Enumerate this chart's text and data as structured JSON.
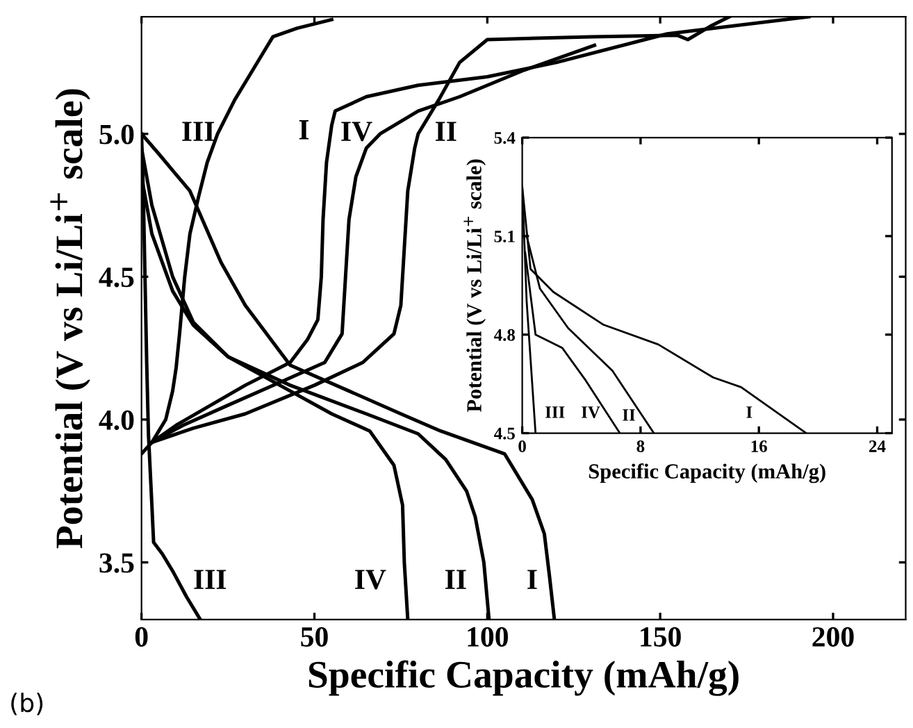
{
  "chart_data": [
    {
      "type": "line",
      "xlabel": "Specific Capacity (mAh/g)",
      "ylabel": "Potential (V vs Li/Li$^{+}$ scale)",
      "xlim": [
        0,
        221
      ],
      "ylim": [
        3.3,
        5.41
      ],
      "xticks": [
        0,
        50,
        100,
        150,
        200
      ],
      "yticks": [
        3.5,
        {
          "value": 4,
          "label": "4.0"
        },
        4.5,
        {
          "value": 5,
          "label": "5.0"
        }
      ],
      "grid": false,
      "series": [
        {
          "name": "III",
          "color": "#000000",
          "x": [
            0,
            3,
            7,
            9,
            10,
            11,
            12.5,
            14,
            16.5,
            19,
            22,
            27,
            31,
            35,
            38,
            45,
            55
          ],
          "values": [
            3.88,
            3.92,
            4.0,
            4.1,
            4.18,
            4.3,
            4.5,
            4.65,
            4.78,
            4.9,
            5.0,
            5.12,
            5.2,
            5.28,
            5.34,
            5.37,
            5.4
          ]
        },
        {
          "name": "III",
          "color": "#000000",
          "x": [
            0,
            0.5,
            1,
            1.5,
            2,
            3,
            3.5,
            6,
            9,
            13,
            17
          ],
          "values": [
            5.0,
            4.8,
            4.5,
            4.2,
            3.95,
            3.7,
            3.57,
            3.53,
            3.47,
            3.38,
            3.3
          ]
        },
        {
          "name": "I",
          "color": "#000000",
          "x": [
            3,
            10,
            20,
            30,
            43,
            48,
            51,
            52,
            52.5,
            53.5,
            55,
            56,
            65,
            80,
            100,
            120,
            152,
            193
          ],
          "values": [
            3.92,
            3.98,
            4.05,
            4.12,
            4.2,
            4.28,
            4.35,
            4.5,
            4.7,
            4.9,
            5.03,
            5.08,
            5.13,
            5.17,
            5.2,
            5.25,
            5.35,
            5.41
          ]
        },
        {
          "name": "IV",
          "color": "#000000",
          "x": [
            3,
            12,
            25,
            40,
            53,
            58,
            59,
            60,
            62,
            65,
            69,
            80,
            92,
            110,
            131
          ],
          "values": [
            3.92,
            3.98,
            4.05,
            4.13,
            4.2,
            4.3,
            4.5,
            4.7,
            4.85,
            4.95,
            5.0,
            5.08,
            5.13,
            5.22,
            5.31
          ]
        },
        {
          "name": "II",
          "color": "#000000",
          "x": [
            3,
            15,
            30,
            50,
            64,
            73,
            75,
            76,
            77,
            79,
            80,
            86,
            92,
            100,
            130,
            155,
            158,
            165,
            170
          ],
          "values": [
            3.92,
            3.97,
            4.02,
            4.12,
            4.2,
            4.3,
            4.4,
            4.6,
            4.8,
            4.95,
            5.0,
            5.12,
            5.25,
            5.33,
            5.34,
            5.345,
            5.33,
            5.38,
            5.41
          ]
        },
        {
          "name": "I",
          "color": "#000000",
          "x": [
            0,
            5,
            14,
            23,
            30,
            43,
            60,
            75,
            86.5,
            105,
            113,
            116.5,
            118,
            119.4
          ],
          "values": [
            5.0,
            4.93,
            4.8,
            4.55,
            4.4,
            4.19,
            4.1,
            4.02,
            3.96,
            3.88,
            3.72,
            3.6,
            3.45,
            3.3
          ]
        },
        {
          "name": "II",
          "color": "#000000",
          "x": [
            0,
            3,
            9,
            15,
            25,
            43,
            65,
            80,
            88,
            94,
            96.5,
            99,
            100.5
          ],
          "values": [
            4.95,
            4.75,
            4.5,
            4.34,
            4.22,
            4.12,
            4.02,
            3.95,
            3.86,
            3.75,
            3.66,
            3.5,
            3.3
          ]
        },
        {
          "name": "IV",
          "color": "#000000",
          "x": [
            0,
            3,
            9,
            15,
            25,
            40,
            55,
            66,
            73,
            75.5,
            76,
            77
          ],
          "values": [
            4.85,
            4.65,
            4.45,
            4.33,
            4.22,
            4.12,
            4.02,
            3.96,
            3.84,
            3.7,
            3.5,
            3.3
          ]
        }
      ],
      "annotations": [
        "(b)"
      ]
    },
    {
      "type": "line",
      "xlabel": "Specific Capacity (mAh/g)",
      "ylabel": "Potential (V vs Li/Li$^{+}$ scale)",
      "xlim": [
        0,
        25
      ],
      "ylim": [
        4.5,
        5.4
      ],
      "xticks": [
        0,
        8,
        16,
        24
      ],
      "yticks": [
        4.5,
        4.8,
        5.1,
        5.4
      ],
      "grid": false,
      "series": [
        {
          "name": "I",
          "color": "#000000",
          "x": [
            0,
            0.56,
            2.1,
            5.5,
            9.2,
            12.9,
            14.8,
            19.2
          ],
          "values": [
            5.25,
            5.0,
            4.93,
            4.83,
            4.77,
            4.67,
            4.64,
            4.5
          ]
        },
        {
          "name": "II",
          "color": "#000000",
          "x": [
            0.3,
            1.2,
            3.1,
            6.1,
            8.9
          ],
          "values": [
            5.1,
            4.94,
            4.82,
            4.69,
            4.5
          ]
        },
        {
          "name": "IV",
          "color": "#000000",
          "x": [
            0.2,
            0.9,
            2.7,
            4.3,
            6.6
          ],
          "values": [
            5.05,
            4.8,
            4.76,
            4.66,
            4.5
          ]
        },
        {
          "name": "III",
          "color": "#000000",
          "x": [
            0,
            0.3,
            0.9
          ],
          "values": [
            5.25,
            4.9,
            4.5
          ]
        }
      ]
    }
  ]
}
